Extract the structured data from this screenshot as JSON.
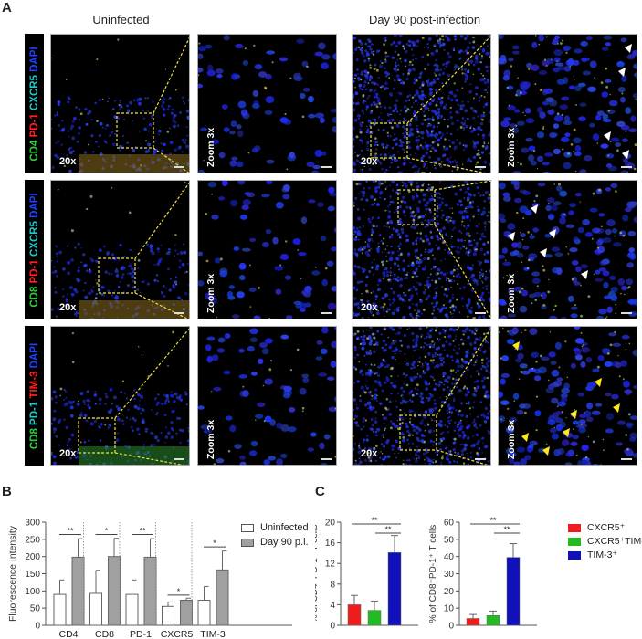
{
  "figure": {
    "panel_A": {
      "letter": "A",
      "column_titles": [
        "Uninfected",
        "Day 90 post-infection"
      ],
      "rows": [
        {
          "stain_label": [
            {
              "text": "CD4",
              "color": "#2ecc40"
            },
            {
              "text": "PD-1",
              "color": "#ff2020"
            },
            {
              "text": "CXCR5",
              "color": "#20c8c8"
            },
            {
              "text": "DAPI",
              "color": "#2040ff"
            }
          ],
          "magnification": "20x",
          "zoom_label": "Zoom 3x",
          "arrowheads_color": "#ffffff"
        },
        {
          "stain_label": [
            {
              "text": "CD8",
              "color": "#2ecc40"
            },
            {
              "text": "PD-1",
              "color": "#ff2020"
            },
            {
              "text": "CXCR5",
              "color": "#20c8c8"
            },
            {
              "text": "DAPI",
              "color": "#2040ff"
            }
          ],
          "magnification": "20x",
          "zoom_label": "Zoom 3x",
          "arrowheads_color": "#ffffff"
        },
        {
          "stain_label": [
            {
              "text": "CD8",
              "color": "#2ecc40"
            },
            {
              "text": "PD-1",
              "color": "#20c8c8"
            },
            {
              "text": "TIM-3",
              "color": "#ff2020"
            },
            {
              "text": "DAPI",
              "color": "#2040ff"
            }
          ],
          "magnification": "20x",
          "zoom_label": "Zoom 3x",
          "arrowheads_color": "#ffe81a"
        }
      ]
    },
    "panel_B": {
      "letter": "B"
    },
    "panel_C": {
      "letter": "C"
    }
  },
  "chart_data": [
    {
      "id": "B",
      "type": "bar",
      "title": "",
      "xlabel": "",
      "ylabel": "Fluorescence Intensity",
      "ylim": [
        0,
        300
      ],
      "yticks": [
        0,
        50,
        100,
        150,
        200,
        250,
        300
      ],
      "categories": [
        "CD4",
        "CD8",
        "PD-1",
        "CXCR5",
        "TIM-3"
      ],
      "series": [
        {
          "name": "Uninfected",
          "color": "#ffffff",
          "values": [
            90,
            93,
            90,
            55,
            73
          ],
          "errors": [
            42,
            67,
            42,
            13,
            40
          ]
        },
        {
          "name": "Day 90 p.i.",
          "color": "#a0a0a0",
          "values": [
            198,
            200,
            198,
            73,
            161
          ],
          "errors": [
            54,
            53,
            54,
            6,
            55
          ]
        }
      ],
      "significance": [
        "**",
        "*",
        "**",
        "*",
        "*"
      ],
      "legend_position": "right",
      "grid": false,
      "group_separators": "dotted vertical lines"
    },
    {
      "id": "C-left",
      "type": "bar",
      "ylabel": "% of CD4⁺PD-1⁺ T cells",
      "ylim": [
        0,
        20
      ],
      "yticks": [
        0,
        4,
        8,
        12,
        16,
        20
      ],
      "categories": [
        "CXCR5⁺",
        "CXCR5⁺TIM-3⁺",
        "TIM-3⁺"
      ],
      "values": [
        4.0,
        2.9,
        14.1
      ],
      "errors": [
        1.8,
        1.8,
        3.3
      ],
      "colors": [
        "#ee1c1c",
        "#22bb22",
        "#1111bb"
      ],
      "significance": [
        {
          "from": 0,
          "to": 2,
          "label": "**"
        },
        {
          "from": 1,
          "to": 2,
          "label": "**"
        }
      ]
    },
    {
      "id": "C-right",
      "type": "bar",
      "ylabel": "% of CD8⁺PD-1⁺ T cells",
      "ylim": [
        0,
        60
      ],
      "yticks": [
        0,
        10,
        20,
        30,
        40,
        50,
        60
      ],
      "categories": [
        "CXCR5⁺",
        "CXCR5⁺TIM-3⁺",
        "TIM-3⁺"
      ],
      "values": [
        4.0,
        5.7,
        39.5
      ],
      "errors": [
        2.3,
        2.6,
        8.0
      ],
      "colors": [
        "#ee1c1c",
        "#22bb22",
        "#1111bb"
      ],
      "significance": [
        {
          "from": 0,
          "to": 2,
          "label": "**"
        },
        {
          "from": 1,
          "to": 2,
          "label": "**"
        }
      ],
      "legend": [
        "CXCR5⁺",
        "CXCR5⁺TIM-3⁺",
        "TIM-3⁺"
      ],
      "legend_position": "right"
    }
  ]
}
